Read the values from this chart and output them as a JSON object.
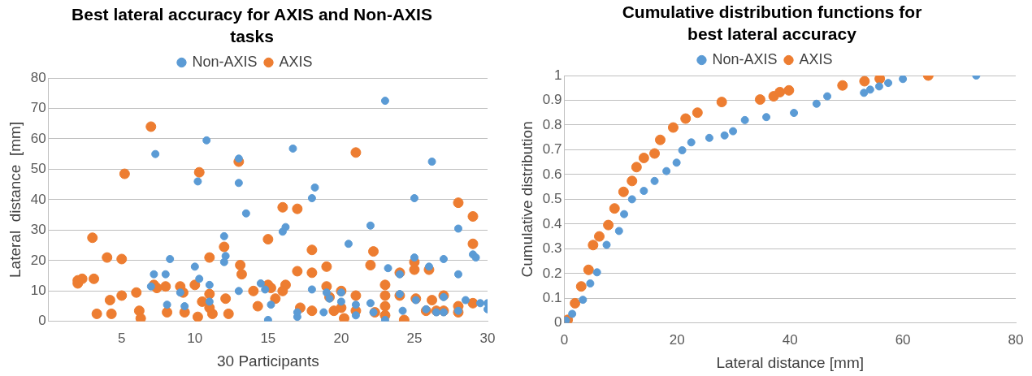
{
  "chart_data": [
    {
      "type": "scatter",
      "title": "Best lateral accuracy for AXIS and Non-AXIS tasks",
      "xlabel": "30 Participants",
      "ylabel": "Lateral  distance  [mm]",
      "xlim": [
        0,
        30
      ],
      "xticks": [
        5,
        10,
        15,
        20,
        25,
        30
      ],
      "ylim": [
        0,
        80
      ],
      "yticks": [
        0,
        10,
        20,
        30,
        40,
        50,
        60,
        70,
        80
      ],
      "grid": "y",
      "legend": "top",
      "marker": "circle",
      "series": [
        {
          "name": "Non-AXIS",
          "color": "#5b9bd5",
          "x": [
            7,
            7.2,
            7.3,
            8,
            8.1,
            8.3,
            9,
            9.3,
            10,
            10.2,
            10.3,
            10.8,
            11,
            11,
            12,
            12,
            12.1,
            13,
            13,
            13,
            13.5,
            14.5,
            14.8,
            15,
            15.2,
            16,
            16.2,
            16.7,
            17,
            17,
            18,
            18,
            18.2,
            18.8,
            19,
            19.2,
            20,
            20,
            20.5,
            21,
            21,
            22,
            22,
            22.2,
            23,
            23,
            23.2,
            24,
            24,
            24.2,
            25,
            25,
            25.1,
            25.8,
            26,
            26.2,
            26.5,
            27,
            27,
            27,
            28,
            28,
            28,
            28.5,
            29,
            29.2,
            29.5,
            30,
            30
          ],
          "values": [
            11.5,
            15.5,
            55,
            15.5,
            5.5,
            20.5,
            9.5,
            5,
            18,
            46,
            14,
            59.5,
            12,
            6.5,
            28,
            19.5,
            21.5,
            53.5,
            45.5,
            10,
            35.5,
            12.5,
            10.5,
            0.5,
            5.5,
            29.5,
            31,
            56.8,
            1.5,
            3,
            10.5,
            40.5,
            44,
            3,
            9.5,
            7.5,
            9.5,
            6.5,
            25.5,
            2,
            5.5,
            31.5,
            6,
            3,
            72.5,
            0.5,
            17.5,
            15.5,
            9,
            3.5,
            21,
            40.5,
            7,
            4,
            18,
            52.5,
            3,
            20.5,
            8,
            3,
            15.5,
            30.5,
            3.5,
            7,
            22,
            21,
            6,
            4,
            6
          ]
        },
        {
          "name": "AXIS",
          "color": "#ed7d31",
          "x": [
            2,
            2,
            2.3,
            3,
            3.1,
            3.3,
            4,
            4.2,
            4.3,
            5,
            5,
            5.2,
            6,
            6.2,
            6.3,
            7,
            7.2,
            7.4,
            8,
            8.1,
            9,
            9.2,
            9.3,
            10,
            10.2,
            10.3,
            10.5,
            11,
            11,
            11.2,
            11,
            12,
            12.1,
            12.3,
            13,
            13.1,
            13.2,
            14,
            14.3,
            15,
            15,
            15.2,
            15.5,
            16,
            16.2,
            16,
            17,
            17,
            17.2,
            18,
            18,
            18,
            19,
            19,
            19.2,
            19.5,
            20,
            20,
            20.2,
            21,
            21,
            21,
            22,
            22.2,
            22.3,
            23,
            23,
            23,
            23,
            24,
            24,
            24.3,
            25,
            25,
            25.1,
            25.8,
            26,
            26.2,
            26.5,
            27,
            27,
            28,
            28,
            28,
            29,
            29,
            29
          ],
          "values": [
            12.5,
            13.5,
            14,
            27.5,
            14,
            2.5,
            21,
            7,
            2.5,
            20.5,
            8.5,
            48.5,
            9.5,
            3.5,
            1,
            64,
            12,
            11,
            11.5,
            3,
            11.5,
            9.5,
            3,
            12,
            1.5,
            49,
            6.5,
            21,
            9,
            2.5,
            4.5,
            24.5,
            7.5,
            2.5,
            52.5,
            18.5,
            15.5,
            10,
            5,
            27,
            12,
            11,
            7.5,
            37.5,
            12,
            10,
            37,
            16.5,
            4.5,
            23.5,
            16,
            3.5,
            18,
            11.5,
            8,
            3.5,
            10,
            4.5,
            1,
            55.5,
            8.5,
            3.5,
            18.5,
            23,
            3,
            12,
            8.5,
            5,
            2,
            16,
            8.5,
            0.5,
            17,
            19.5,
            7.5,
            3.5,
            17,
            7,
            3.5,
            8.5,
            3.5,
            39,
            5,
            3,
            34.5,
            25.5,
            6
          ]
        }
      ]
    },
    {
      "type": "scatter",
      "title": "Cumulative distribution functions for best lateral accuracy",
      "xlabel": "Lateral distance [mm]",
      "ylabel": "Cumulative distribution",
      "xlim": [
        0,
        80
      ],
      "xticks": [
        0,
        20,
        40,
        60,
        80
      ],
      "ylim": [
        0,
        1
      ],
      "yticks": [
        0,
        0.1,
        0.2,
        0.3,
        0.4,
        0.5,
        0.6,
        0.7,
        0.8,
        0.9,
        1
      ],
      "grid": "y",
      "legend": "top",
      "marker": "circle",
      "series": [
        {
          "name": "Non-AXIS",
          "color": "#5b9bd5",
          "x": [
            0.3,
            1.4,
            3.3,
            4.6,
            5.8,
            7.5,
            9.7,
            10.6,
            12,
            14.1,
            16,
            18.1,
            19.9,
            20.9,
            22.5,
            25.7,
            28.4,
            29.9,
            32,
            35.8,
            40.7,
            44.7,
            46.6,
            53.1,
            54.2,
            55.8,
            57.4,
            60,
            73
          ],
          "values": [
            0.01,
            0.037,
            0.094,
            0.16,
            0.205,
            0.316,
            0.372,
            0.44,
            0.5,
            0.534,
            0.574,
            0.614,
            0.648,
            0.698,
            0.73,
            0.748,
            0.758,
            0.775,
            0.82,
            0.832,
            0.849,
            0.886,
            0.916,
            0.93,
            0.943,
            0.956,
            0.97,
            0.986,
            1
          ]
        },
        {
          "name": "AXIS",
          "color": "#ed7d31",
          "x": [
            0.6,
            1.9,
            3,
            4.3,
            5.1,
            6.2,
            7.8,
            8.9,
            10.5,
            12,
            12.8,
            14.1,
            16,
            17,
            19.3,
            21.5,
            23.6,
            27.9,
            34.7,
            37.1,
            38.2,
            39.8,
            49.3,
            53.2,
            55.9,
            64.5
          ],
          "values": [
            0.013,
            0.08,
            0.148,
            0.215,
            0.315,
            0.35,
            0.396,
            0.463,
            0.53,
            0.574,
            0.63,
            0.667,
            0.685,
            0.74,
            0.79,
            0.826,
            0.85,
            0.893,
            0.903,
            0.916,
            0.933,
            0.94,
            0.96,
            0.977,
            0.987,
            1
          ]
        }
      ]
    }
  ]
}
